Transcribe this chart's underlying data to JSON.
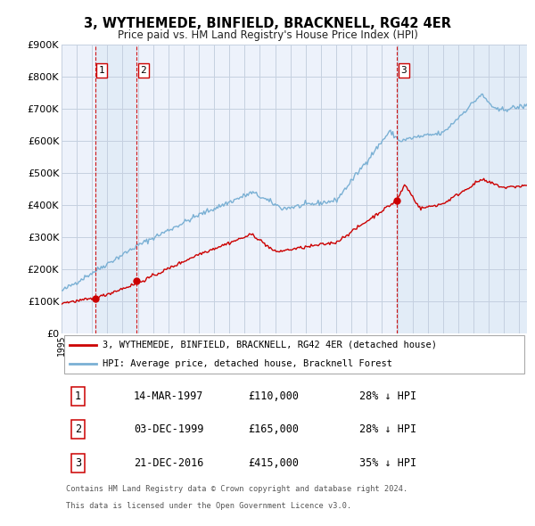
{
  "title": "3, WYTHEMEDE, BINFIELD, BRACKNELL, RG42 4ER",
  "subtitle": "Price paid vs. HM Land Registry's House Price Index (HPI)",
  "bg_color": "#edf2fb",
  "plot_bg_color": "#edf2fb",
  "grid_color": "#c5d0e0",
  "sale_color": "#cc0000",
  "hpi_color": "#7ab0d4",
  "shading_color": "#dce8f5",
  "ylim": [
    0,
    900000
  ],
  "yticks": [
    0,
    100000,
    200000,
    300000,
    400000,
    500000,
    600000,
    700000,
    800000,
    900000
  ],
  "sales": [
    {
      "date_num": 1997.2,
      "price": 110000,
      "label": "1"
    },
    {
      "date_num": 1999.92,
      "price": 165000,
      "label": "2"
    },
    {
      "date_num": 2016.97,
      "price": 415000,
      "label": "3"
    }
  ],
  "vline_dates": [
    1997.2,
    1999.92,
    2016.97
  ],
  "vline_color": "#cc0000",
  "legend_sale_label": "3, WYTHEMEDE, BINFIELD, BRACKNELL, RG42 4ER (detached house)",
  "legend_hpi_label": "HPI: Average price, detached house, Bracknell Forest",
  "table_rows": [
    {
      "num": "1",
      "date": "14-MAR-1997",
      "price": "£110,000",
      "hpi": "28% ↓ HPI"
    },
    {
      "num": "2",
      "date": "03-DEC-1999",
      "price": "£165,000",
      "hpi": "28% ↓ HPI"
    },
    {
      "num": "3",
      "date": "21-DEC-2016",
      "price": "£415,000",
      "hpi": "35% ↓ HPI"
    }
  ],
  "footnote1": "Contains HM Land Registry data © Crown copyright and database right 2024.",
  "footnote2": "This data is licensed under the Open Government Licence v3.0.",
  "xmin": 1995.0,
  "xmax": 2025.5,
  "box_positions": [
    [
      1997.2,
      820000,
      "1"
    ],
    [
      1999.92,
      820000,
      "2"
    ],
    [
      2016.97,
      820000,
      "3"
    ]
  ]
}
